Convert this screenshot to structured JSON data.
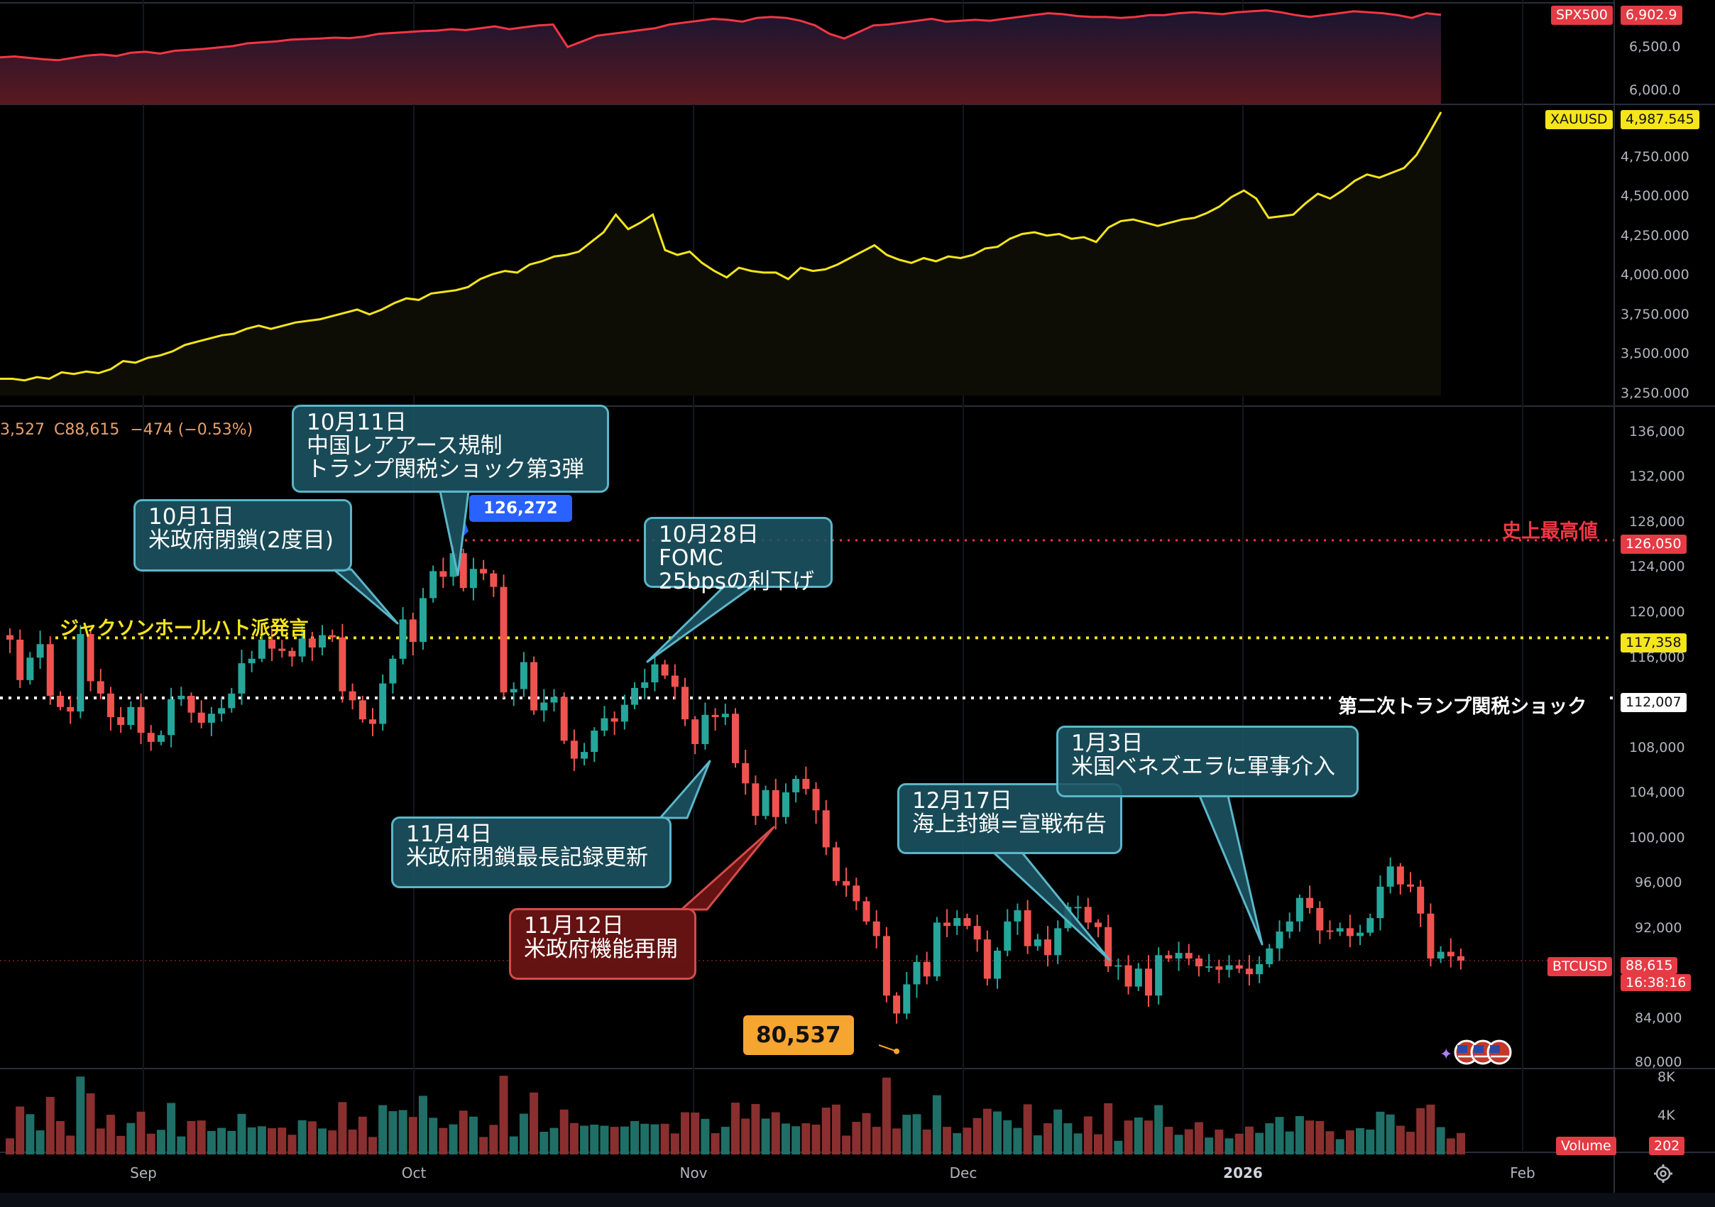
{
  "chart_data": [
    {
      "type": "area",
      "symbol": "SPX500",
      "last": "6,902.9",
      "ticks": [
        "6,500.0",
        "6,000.0"
      ],
      "ylim": [
        5950,
        7000
      ],
      "values": [
        6450,
        6460,
        6445,
        6430,
        6420,
        6445,
        6470,
        6480,
        6465,
        6500,
        6510,
        6490,
        6520,
        6530,
        6540,
        6555,
        6570,
        6600,
        6610,
        6620,
        6640,
        6645,
        6650,
        6660,
        6655,
        6670,
        6700,
        6710,
        6720,
        6730,
        6735,
        6750,
        6740,
        6760,
        6780,
        6750,
        6770,
        6790,
        6800,
        6560,
        6620,
        6680,
        6700,
        6720,
        6740,
        6760,
        6800,
        6820,
        6840,
        6860,
        6850,
        6830,
        6870,
        6880,
        6870,
        6840,
        6790,
        6700,
        6650,
        6720,
        6790,
        6800,
        6820,
        6840,
        6860,
        6830,
        6840,
        6850,
        6840,
        6860,
        6880,
        6900,
        6920,
        6910,
        6890,
        6880,
        6880,
        6870,
        6880,
        6900,
        6900,
        6920,
        6930,
        6920,
        6910,
        6930,
        6940,
        6950,
        6930,
        6900,
        6880,
        6900,
        6920,
        6940,
        6930,
        6920,
        6900,
        6870,
        6920,
        6902.9
      ],
      "color": "#f23645"
    },
    {
      "type": "area",
      "symbol": "XAUUSD",
      "last": "4,987.545",
      "ticks": [
        "4,750.000",
        "4,500.000",
        "4,250.000",
        "4,000.000",
        "3,750.000",
        "3,500.000",
        "3,250.000"
      ],
      "ylim": [
        3160,
        5000
      ],
      "values": [
        3330,
        3330,
        3320,
        3340,
        3330,
        3370,
        3360,
        3375,
        3365,
        3390,
        3440,
        3430,
        3460,
        3475,
        3500,
        3540,
        3560,
        3580,
        3600,
        3610,
        3640,
        3660,
        3640,
        3660,
        3680,
        3690,
        3700,
        3720,
        3740,
        3760,
        3730,
        3760,
        3800,
        3830,
        3820,
        3860,
        3870,
        3880,
        3900,
        3950,
        3980,
        4000,
        3990,
        4040,
        4060,
        4090,
        4100,
        4120,
        4180,
        4240,
        4350,
        4260,
        4300,
        4350,
        4130,
        4100,
        4120,
        4050,
        4000,
        3960,
        4020,
        4000,
        3990,
        3990,
        3950,
        4020,
        4000,
        4010,
        4040,
        4080,
        4120,
        4160,
        4100,
        4070,
        4050,
        4080,
        4060,
        4090,
        4080,
        4100,
        4140,
        4150,
        4200,
        4230,
        4240,
        4220,
        4230,
        4200,
        4210,
        4180,
        4270,
        4310,
        4320,
        4300,
        4280,
        4300,
        4320,
        4330,
        4360,
        4400,
        4460,
        4500,
        4450,
        4330,
        4340,
        4350,
        4420,
        4480,
        4450,
        4500,
        4560,
        4600,
        4580,
        4610,
        4640,
        4720,
        4850,
        4987
      ],
      "color": "#f5e51b"
    },
    {
      "type": "candlestick",
      "symbol": "BTCUSD",
      "ohlc_label": "3,527",
      "close_label": "C88,615",
      "change_label": "−474 (−0.53%)",
      "last": "88,615",
      "countdown": "16:38:16",
      "ylim": [
        79000,
        138000
      ],
      "ticks": [
        "136,000",
        "132,000",
        "128,000",
        "124,000",
        "120,000",
        "116,000",
        "108,000",
        "104,000",
        "100,000",
        "96,000",
        "92,000",
        "84,000",
        "80,000"
      ],
      "x_labels": [
        "Sep",
        "Oct",
        "Nov",
        "Dec",
        "2026",
        "Feb"
      ],
      "closes": [
        117200,
        113600,
        115600,
        116800,
        112200,
        111200,
        110800,
        117700,
        113500,
        112400,
        110300,
        109600,
        111200,
        108900,
        108100,
        108700,
        111900,
        112200,
        110700,
        109800,
        110600,
        111100,
        112400,
        115100,
        115500,
        117200,
        116400,
        116200,
        115700,
        117300,
        116500,
        117600,
        117400,
        112600,
        111800,
        110100,
        109700,
        113300,
        115500,
        119000,
        117000,
        120900,
        123300,
        122800,
        124900,
        121800,
        123500,
        123100,
        121900,
        112500,
        112800,
        115200,
        110900,
        111600,
        112100,
        108200,
        106600,
        107200,
        109100,
        110200,
        109900,
        111400,
        112900,
        113400,
        115000,
        114000,
        113000,
        110100,
        107900,
        110500,
        110300,
        110600,
        106200,
        104400,
        101500,
        103800,
        101400,
        103600,
        104800,
        103900,
        102000,
        98700,
        95700,
        95300,
        93900,
        92100,
        90800,
        85500,
        83900,
        86500,
        88500,
        87200,
        92000,
        91700,
        92400,
        91700,
        90500,
        87000,
        89500,
        92100,
        93100,
        89900,
        90500,
        89100,
        91500,
        93400,
        93400,
        92000,
        91600,
        88100,
        88200,
        86300,
        87900,
        85500,
        89100,
        88800,
        89300,
        88800,
        88100,
        88100,
        87800,
        88200,
        87900,
        87400,
        88300,
        89700,
        91200,
        92100,
        94200,
        93300,
        91300,
        91200,
        91500,
        90800,
        91100,
        92400,
        95200,
        97000,
        95400,
        95200,
        92800,
        88800,
        89400,
        89000,
        88615
      ],
      "ath": {
        "value": "126,272",
        "line": "126,050",
        "label": "史上最高値"
      },
      "low_label": "80,537",
      "levels": [
        {
          "value": "117,358",
          "label": "ジャクソンホールハト派発言",
          "color": "#f5e51b"
        },
        {
          "value": "112,007",
          "label": "第二次トランプ関税ショック",
          "color": "#ffffff"
        }
      ],
      "annotations": [
        {
          "text": "10月1日\n米政府閉鎖(2度目)"
        },
        {
          "text": "10月11日\n中国レアアース規制\nトランプ関税ショック第3弾"
        },
        {
          "text": "10月28日FOMC\n25bpsの利下げ"
        },
        {
          "text": "11月4日\n米政府閉鎖最長記録更新"
        },
        {
          "text": "11月12日\n米政府機能再開"
        },
        {
          "text": "12月17日\n海上封鎖=宣戦布告"
        },
        {
          "text": "1月3日\n米国ベネズエラに軍事介入"
        }
      ]
    },
    {
      "type": "bar",
      "symbol": "Volume",
      "last": "202",
      "ticks": [
        "8K",
        "4K"
      ],
      "ylim": [
        0,
        9000
      ]
    }
  ]
}
